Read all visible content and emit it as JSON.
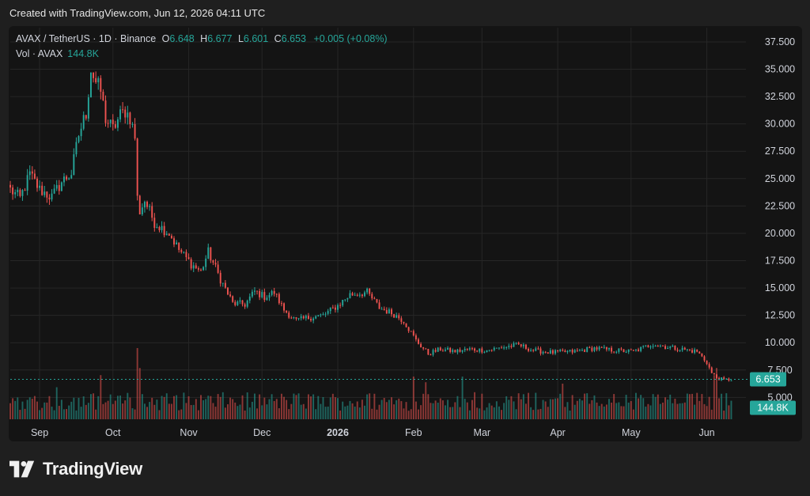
{
  "header": {
    "created_text": "Created with TradingView.com, Jun 12, 2026 04:11 UTC"
  },
  "legend": {
    "symbol": "AVAX / TetherUS · 1D · Binance",
    "open_label": "O",
    "open": "6.648",
    "high_label": "H",
    "high": "6.677",
    "low_label": "L",
    "low": "6.601",
    "close_label": "C",
    "close": "6.653",
    "change": "+0.005 (+0.08%)",
    "volume_label": "Vol · AVAX",
    "volume": "144.8K"
  },
  "brand": {
    "name": "TradingView",
    "logo": "tradingview-logo-icon"
  },
  "colors": {
    "up": "#26a69a",
    "down": "#ef5350",
    "background": "#141414",
    "page": "#1f1f1f",
    "text": "#d1d4dc",
    "grid": "#262626"
  },
  "chart_data": {
    "type": "candlestick",
    "y_ticks": [
      "37.500",
      "35.000",
      "32.500",
      "30.000",
      "27.500",
      "25.000",
      "22.500",
      "20.000",
      "17.500",
      "15.000",
      "12.500",
      "10.000",
      "7.500",
      "5.000"
    ],
    "ylim": [
      3.0,
      38.8
    ],
    "x_ticks": [
      "Sep",
      "Oct",
      "Nov",
      "Dec",
      "2026",
      "Feb",
      "Mar",
      "Apr",
      "May",
      "Jun"
    ],
    "x_range": [
      "2025-08-20",
      "2026-06-17"
    ],
    "last_price_label": "6.653",
    "last_volume_label": "144.8K",
    "trend": [
      [
        "2025-08-20",
        24.0
      ],
      [
        "2025-08-24",
        23.2
      ],
      [
        "2025-08-28",
        25.4
      ],
      [
        "2025-09-01",
        24.0
      ],
      [
        "2025-09-06",
        23.3
      ],
      [
        "2025-09-10",
        24.7
      ],
      [
        "2025-09-14",
        25.5
      ],
      [
        "2025-09-17",
        29.0
      ],
      [
        "2025-09-20",
        31.0
      ],
      [
        "2025-09-22",
        35.0
      ],
      [
        "2025-09-24",
        33.8
      ],
      [
        "2025-09-26",
        33.0
      ],
      [
        "2025-09-28",
        30.5
      ],
      [
        "2025-10-01",
        29.5
      ],
      [
        "2025-10-04",
        30.8
      ],
      [
        "2025-10-06",
        31.2
      ],
      [
        "2025-10-08",
        30.6
      ],
      [
        "2025-10-10",
        28.8
      ],
      [
        "2025-10-11",
        23.2
      ],
      [
        "2025-10-12",
        22.0
      ],
      [
        "2025-10-14",
        23.0
      ],
      [
        "2025-10-18",
        21.0
      ],
      [
        "2025-10-24",
        20.0
      ],
      [
        "2025-10-28",
        18.5
      ],
      [
        "2025-11-02",
        17.2
      ],
      [
        "2025-11-06",
        16.5
      ],
      [
        "2025-11-09",
        18.3
      ],
      [
        "2025-11-14",
        15.8
      ],
      [
        "2025-11-19",
        13.6
      ],
      [
        "2025-11-24",
        13.5
      ],
      [
        "2025-11-28",
        14.7
      ],
      [
        "2025-12-02",
        14.2
      ],
      [
        "2025-12-06",
        14.6
      ],
      [
        "2025-12-10",
        13.0
      ],
      [
        "2025-12-15",
        12.0
      ],
      [
        "2025-12-20",
        12.3
      ],
      [
        "2025-12-26",
        12.5
      ],
      [
        "2026-01-01",
        13.4
      ],
      [
        "2026-01-06",
        14.4
      ],
      [
        "2026-01-13",
        14.6
      ],
      [
        "2026-01-18",
        13.2
      ],
      [
        "2026-01-24",
        12.6
      ],
      [
        "2026-01-28",
        12.0
      ],
      [
        "2026-02-02",
        10.2
      ],
      [
        "2026-02-07",
        9.0
      ],
      [
        "2026-02-12",
        9.4
      ],
      [
        "2026-02-18",
        9.2
      ],
      [
        "2026-02-24",
        9.4
      ],
      [
        "2026-03-03",
        9.3
      ],
      [
        "2026-03-10",
        9.6
      ],
      [
        "2026-03-16",
        9.8
      ],
      [
        "2026-03-22",
        9.3
      ],
      [
        "2026-03-30",
        9.1
      ],
      [
        "2026-04-08",
        9.2
      ],
      [
        "2026-04-16",
        9.5
      ],
      [
        "2026-04-24",
        9.3
      ],
      [
        "2026-05-02",
        9.2
      ],
      [
        "2026-05-10",
        9.9
      ],
      [
        "2026-05-16",
        9.6
      ],
      [
        "2026-05-22",
        9.4
      ],
      [
        "2026-05-28",
        9.2
      ],
      [
        "2026-06-01",
        8.2
      ],
      [
        "2026-06-03",
        7.2
      ],
      [
        "2026-06-05",
        6.8
      ],
      [
        "2026-06-08",
        6.6
      ],
      [
        "2026-06-11",
        6.65
      ]
    ],
    "volume_spikes": [
      [
        "2025-10-11",
        1.0
      ],
      [
        "2025-10-12",
        0.72
      ],
      [
        "2025-09-26",
        0.62
      ],
      [
        "2025-09-08",
        0.45
      ],
      [
        "2026-02-01",
        0.6
      ],
      [
        "2026-02-06",
        0.52
      ],
      [
        "2026-02-21",
        0.6
      ],
      [
        "2026-02-26",
        0.38
      ],
      [
        "2026-04-03",
        0.5
      ],
      [
        "2026-06-04",
        0.62
      ],
      [
        "2026-06-05",
        0.72
      ]
    ]
  }
}
